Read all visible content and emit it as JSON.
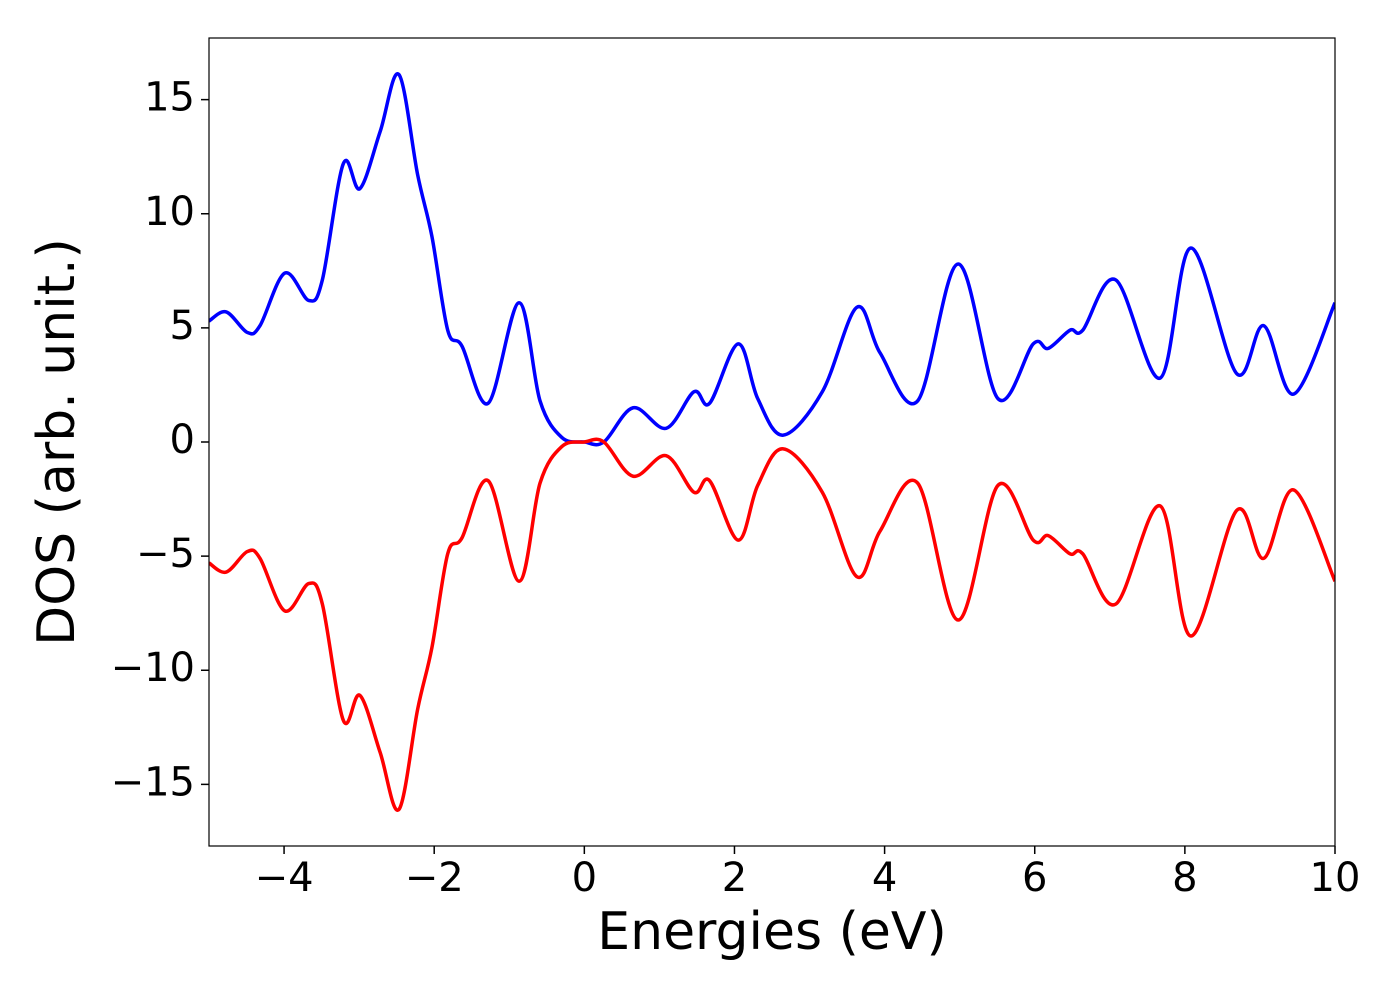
{
  "chart_data": {
    "type": "line",
    "xlabel": "Energies (eV)",
    "ylabel": "DOS (arb. unit.)",
    "x": [
      -5,
      -4.77,
      -4.49,
      -4.32,
      -3.99,
      -3.67,
      -3.49,
      -3.21,
      -2.99,
      -2.72,
      -2.47,
      -2.22,
      -2.03,
      -1.82,
      -1.63,
      -1.28,
      -0.87,
      -0.59,
      -0.3,
      0,
      0.26,
      0.65,
      1.09,
      1.46,
      1.67,
      2.05,
      2.31,
      2.65,
      3.17,
      3.63,
      3.94,
      4.44,
      4.98,
      5.51,
      5.98,
      6.18,
      6.47,
      6.64,
      7.08,
      7.67,
      8.08,
      8.69,
      9.05,
      9.45,
      10
    ],
    "series": [
      {
        "color": "#0000ff",
        "values": [
          5.3,
          5.7,
          4.8,
          5.1,
          7.4,
          6.2,
          7.1,
          12.2,
          11.1,
          13.6,
          16.1,
          11.7,
          9.0,
          4.9,
          4.2,
          1.7,
          6.1,
          1.8,
          0.2,
          0,
          0.0,
          1.5,
          0.6,
          2.2,
          1.7,
          4.3,
          1.9,
          0.3,
          2.2,
          5.9,
          3.9,
          1.8,
          7.8,
          1.9,
          4.3,
          4.1,
          4.9,
          4.9,
          7.1,
          2.8,
          8.5,
          3.0,
          5.1,
          2.1,
          6.1
        ]
      },
      {
        "color": "#ff0000",
        "values": [
          -5.3,
          -5.7,
          -4.8,
          -5.1,
          -7.4,
          -6.2,
          -7.1,
          -12.2,
          -11.1,
          -13.6,
          -16.1,
          -11.7,
          -9.0,
          -4.9,
          -4.2,
          -1.7,
          -6.1,
          -1.8,
          -0.2,
          0,
          0.0,
          -1.5,
          -0.6,
          -2.2,
          -1.7,
          -4.3,
          -1.9,
          -0.3,
          -2.2,
          -5.9,
          -3.9,
          -1.8,
          -7.8,
          -1.9,
          -4.3,
          -4.1,
          -4.9,
          -4.9,
          -7.1,
          -2.8,
          -8.5,
          -3.0,
          -5.1,
          -2.1,
          -6.1
        ]
      }
    ],
    "xlim": [
      -5,
      10
    ],
    "xticks": [
      {
        "value": -4,
        "label": "−4"
      },
      {
        "value": -2,
        "label": "−2"
      },
      0,
      2,
      4,
      6,
      8,
      10
    ],
    "ylim": [
      -17.7,
      17.7
    ],
    "yticks": [
      {
        "value": -15,
        "label": "−15"
      },
      {
        "value": -10,
        "label": "−10"
      },
      {
        "value": -5,
        "label": "−5"
      },
      0,
      5,
      10,
      15
    ],
    "grid": false
  }
}
